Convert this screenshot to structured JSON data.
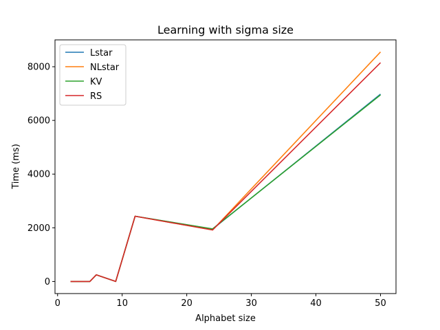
{
  "chart_data": {
    "type": "line",
    "title": "Learning with sigma size",
    "xlabel": "Alphabet size",
    "ylabel": "Time (ms)",
    "xlim": [
      -0.4,
      52.4
    ],
    "ylim": [
      -450,
      9000
    ],
    "xticks": [
      0,
      10,
      20,
      30,
      40,
      50
    ],
    "yticks": [
      0,
      2000,
      4000,
      6000,
      8000
    ],
    "grid": false,
    "legend": "top-left",
    "x": [
      2,
      3,
      4,
      5,
      6,
      9,
      12,
      24,
      50
    ],
    "series": [
      {
        "name": "Lstar",
        "color": "#1f77b4",
        "values": [
          0,
          0,
          0,
          0,
          250,
          0,
          2430,
          1950,
          6980
        ]
      },
      {
        "name": "NLstar",
        "color": "#ff7f0e",
        "values": [
          0,
          0,
          0,
          0,
          250,
          0,
          2430,
          1920,
          8550
        ]
      },
      {
        "name": "KV",
        "color": "#2ca02c",
        "values": [
          0,
          0,
          0,
          0,
          250,
          0,
          2430,
          1960,
          6950
        ]
      },
      {
        "name": "RS",
        "color": "#d62728",
        "values": [
          0,
          0,
          0,
          0,
          250,
          0,
          2430,
          1920,
          8150
        ]
      }
    ]
  }
}
